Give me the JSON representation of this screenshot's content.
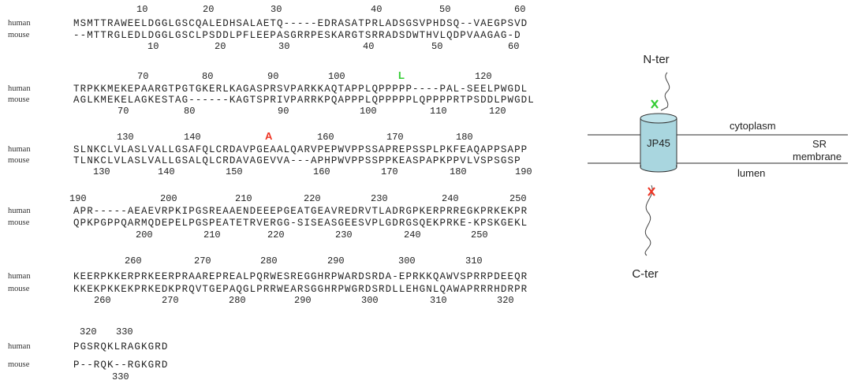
{
  "alignment": {
    "species": [
      "human",
      "mouse"
    ],
    "blocks": [
      {
        "top_ruler": [
          10,
          20,
          30,
          40,
          50,
          60
        ],
        "sequences": [
          "MSMTTRAWEELDGGLGSCQALEDHSALAETQ-----EDRASATPRLADSGSVPHDSQ--VAEGPSVD",
          "--MTTRGLEDLDGGLGSCLPSDDLPFLEEPASGRRPESKARGTSRRADSDWTHVLQDPVAAGAG-D"
        ],
        "bottom_ruler": [
          10,
          20,
          30,
          40,
          50,
          60
        ]
      },
      {
        "top_ruler": [
          70,
          80,
          90,
          100,
          120
        ],
        "annotation": {
          "text": "L",
          "color": "#33cc33"
        },
        "sequences": [
          "TRPKKMEKEPAARGTPGTGKERLKAGASPRSVPARKKAQTAPPLQPPPPP----PAL-SEELPWGDL",
          "AGLKMEKELAGKESTAG------KAGTSPRIVPARRKPQAPPPLQPPPPPLQPPPPRTPSDDLPWGDL"
        ],
        "bottom_ruler": [
          70,
          80,
          90,
          100,
          110,
          120
        ]
      },
      {
        "top_ruler": [
          130,
          140,
          160,
          170,
          180
        ],
        "annotation": {
          "text": "A",
          "color": "#ee3322"
        },
        "sequences": [
          "SLNKCLVLASLVALLGSAFQLCRDAVPGEAALQARVPEPWVPPSSAPREPSSPLPKFEAQAPPSAPP",
          "TLNKCLVLASLVALLGSALQLCRDAVAGEVVA---APHPWVPPSSPPKEASPAPKPPVLVSPSGSP"
        ],
        "bottom_ruler": [
          130,
          140,
          150,
          160,
          170,
          180,
          190
        ]
      },
      {
        "top_ruler": [
          190,
          200,
          210,
          220,
          230,
          240,
          250
        ],
        "sequences": [
          "APR-----AEAEVRPKIPGSREAAENDEEEPGEATGEAVREDRVTLADRGPKERPRREGKPRKEKPR",
          "QPKPGPPQARMQDEPELPGSPEATETRVERGG-SISEASGEESVPLGDRGSQEKPRKE-KPSKGEKL"
        ],
        "bottom_ruler": [
          200,
          210,
          220,
          230,
          240,
          250
        ]
      },
      {
        "top_ruler": [
          260,
          270,
          280,
          290,
          300,
          310
        ],
        "sequences": [
          "KEERPKKERPRKEERPRAAREPREALPQRWESREGGHRPWARDSRDA-EPRKKQAWVSPRRPDEEQR",
          "KKEKPKKEKPRKEDKPRQVTGEPAQGLPRRWEARSGGHRPWGRDSRDLLEHGNLQAWAPRRRHDRPR"
        ],
        "bottom_ruler": [
          260,
          270,
          280,
          290,
          300,
          310,
          320
        ]
      },
      {
        "top_ruler": [
          320,
          330
        ],
        "sequences": [
          "PGSRQKLRAGKGRD",
          "P--RQK--RGKGRD"
        ],
        "bottom_ruler": [
          330
        ]
      }
    ]
  },
  "diagram": {
    "n_terminus": "N-ter",
    "c_terminus": "C-ter",
    "protein": "JP45",
    "cytoplasm": "cytoplasm",
    "sr": "SR",
    "membrane": "membrane",
    "lumen": "lumen"
  }
}
